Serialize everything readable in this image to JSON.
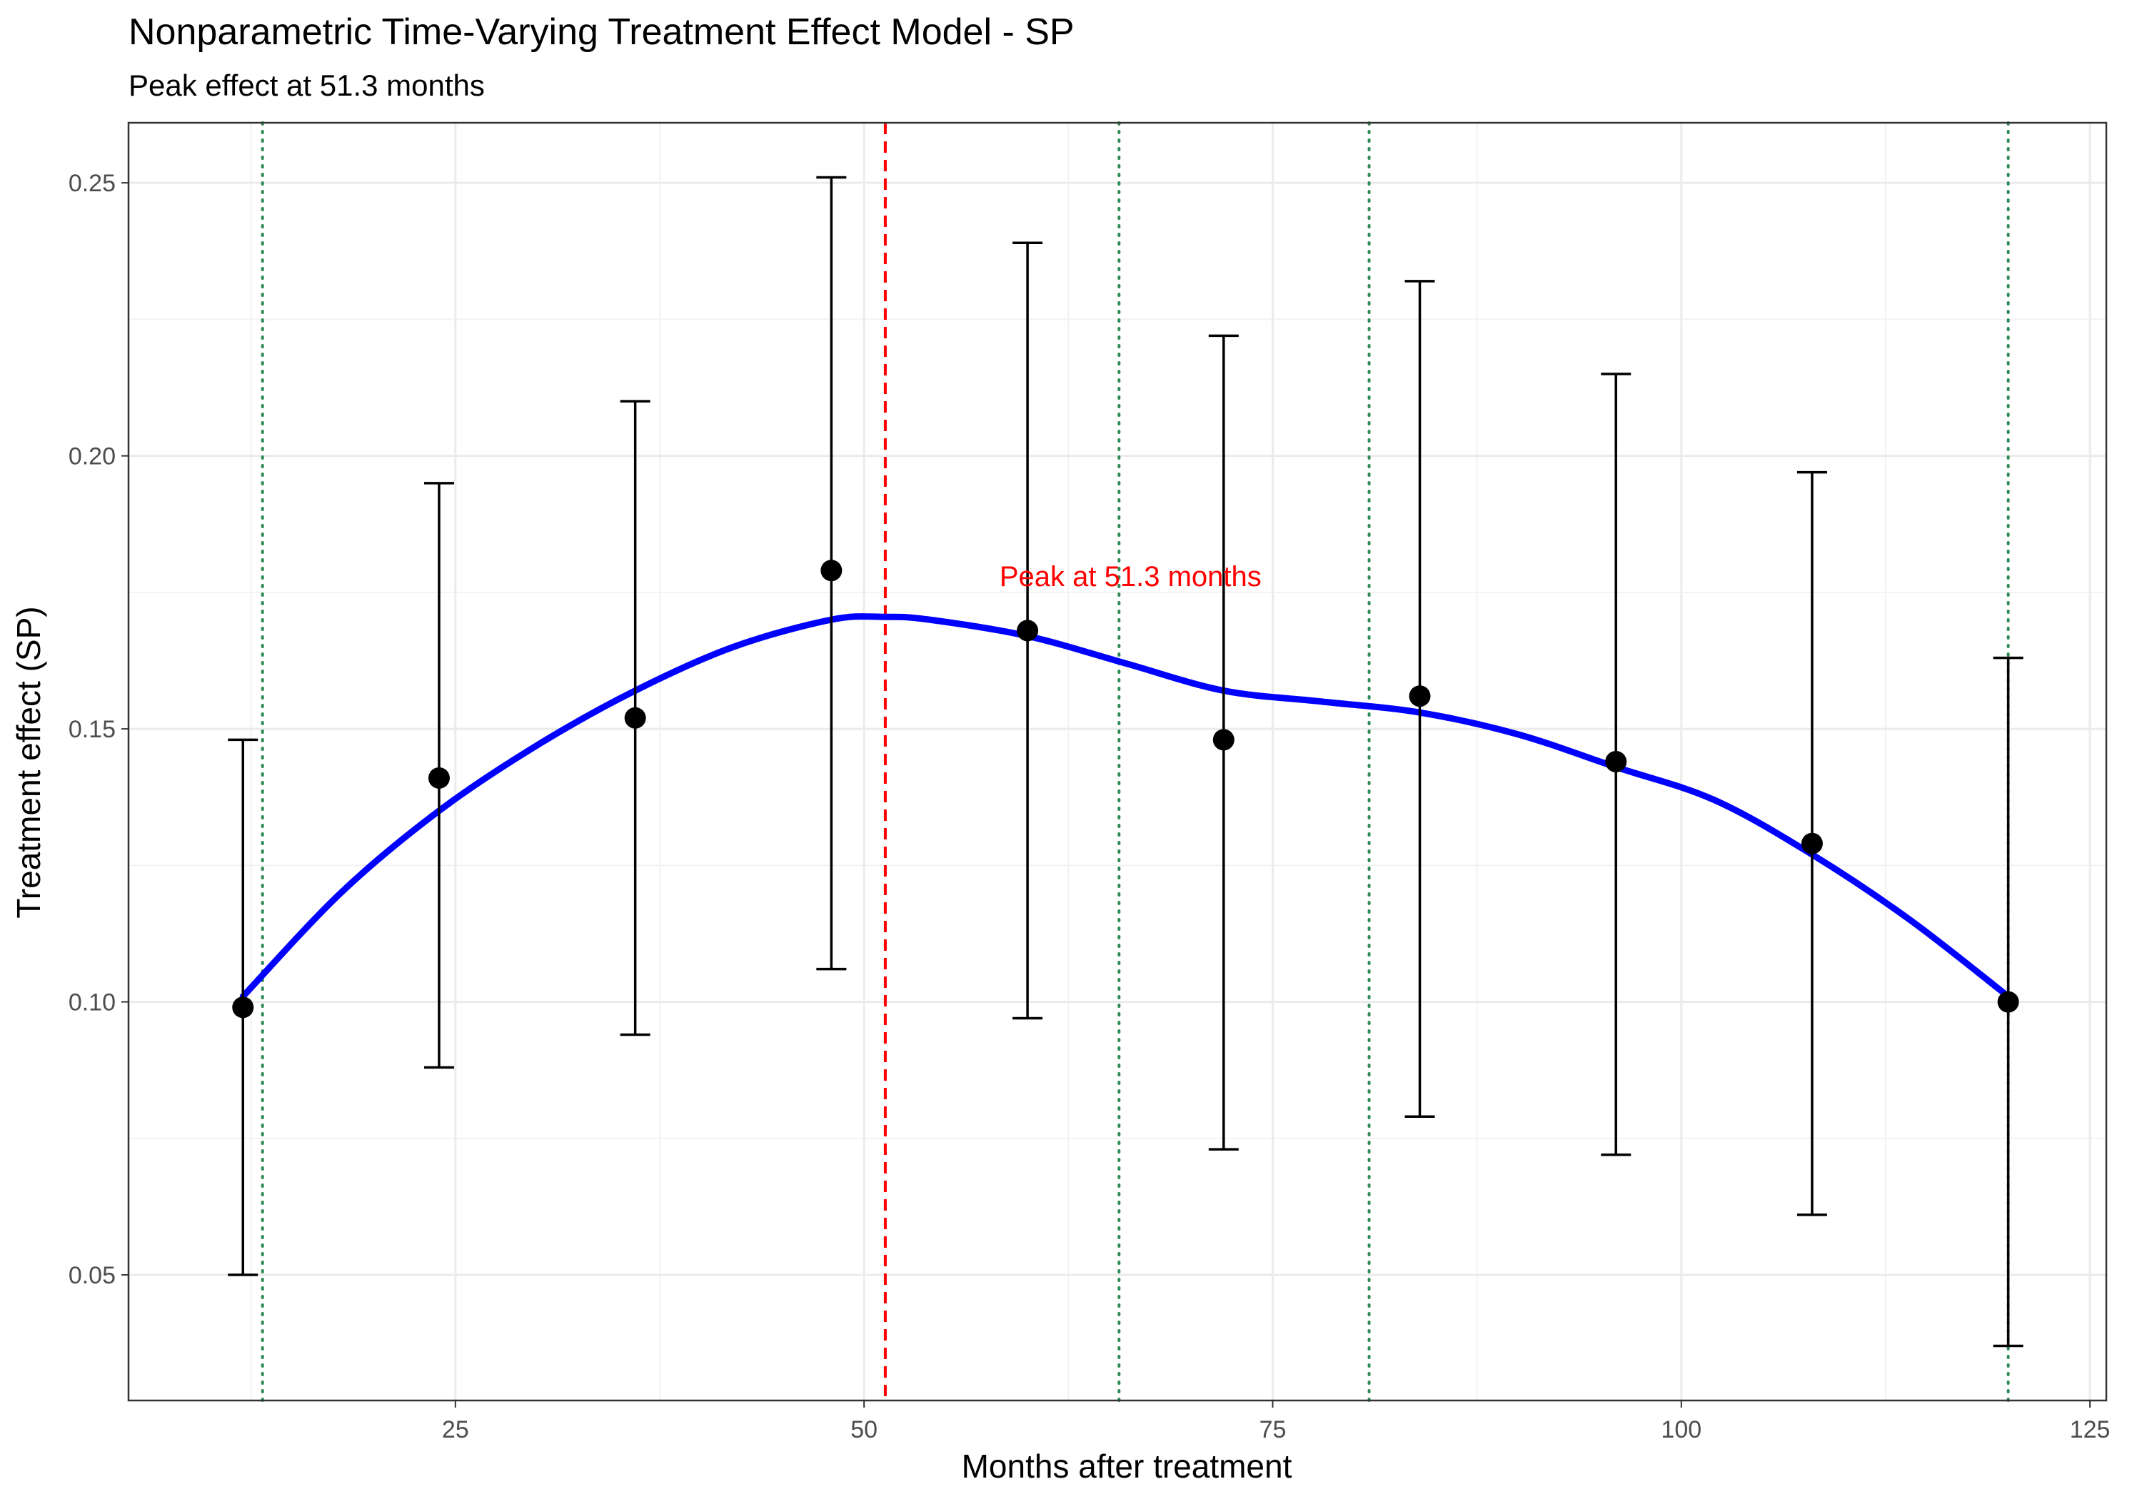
{
  "chart_data": {
    "type": "scatter",
    "title": "Nonparametric Time-Varying Treatment Effect Model - SP",
    "subtitle": "Peak effect at 51.3 months",
    "xlabel": "Months after treatment",
    "ylabel": "Treatment effect (SP)",
    "xlim": [
      5,
      126
    ],
    "ylim": [
      0.027,
      0.261
    ],
    "x_ticks": [
      25,
      50,
      75,
      100,
      125
    ],
    "x_tick_labels": [
      "25",
      "50",
      "75",
      "100",
      "125"
    ],
    "y_ticks": [
      0.05,
      0.1,
      0.15,
      0.2,
      0.25
    ],
    "y_tick_labels": [
      "0.05",
      "0.10",
      "0.15",
      "0.20",
      "0.25"
    ],
    "grid": true,
    "legend": "none",
    "points": {
      "x": [
        12,
        24,
        36,
        48,
        60,
        72,
        84,
        96,
        108,
        120
      ],
      "y": [
        0.099,
        0.141,
        0.152,
        0.179,
        0.168,
        0.148,
        0.156,
        0.144,
        0.129,
        0.1
      ],
      "lower": [
        0.05,
        0.088,
        0.094,
        0.106,
        0.097,
        0.073,
        0.079,
        0.072,
        0.061,
        0.037
      ],
      "upper": [
        0.148,
        0.195,
        0.21,
        0.251,
        0.239,
        0.222,
        0.232,
        0.215,
        0.197,
        0.163
      ],
      "color": "#000000"
    },
    "smooth_curve": {
      "x": [
        12,
        18,
        24,
        30,
        36,
        42,
        48,
        51.3,
        54,
        60,
        66,
        72,
        78,
        84,
        90,
        96,
        102,
        108,
        114,
        120
      ],
      "y": [
        0.101,
        0.12,
        0.135,
        0.147,
        0.157,
        0.165,
        0.17,
        0.1705,
        0.17,
        0.167,
        0.162,
        0.157,
        0.155,
        0.153,
        0.149,
        0.143,
        0.137,
        0.127,
        0.115,
        0.101
      ],
      "color": "#0000ff"
    },
    "reference_lines": {
      "peak": {
        "x": 51.3,
        "color": "#ff0000",
        "style": "dashed"
      },
      "knots": {
        "x": [
          13.2,
          65.6,
          80.9,
          120
        ],
        "color": "#2e8b57",
        "style": "dotted"
      }
    },
    "annotation": {
      "text": "Peak at 51.3 months",
      "x": 66.3,
      "y": 0.178,
      "color": "#ff0000"
    }
  }
}
